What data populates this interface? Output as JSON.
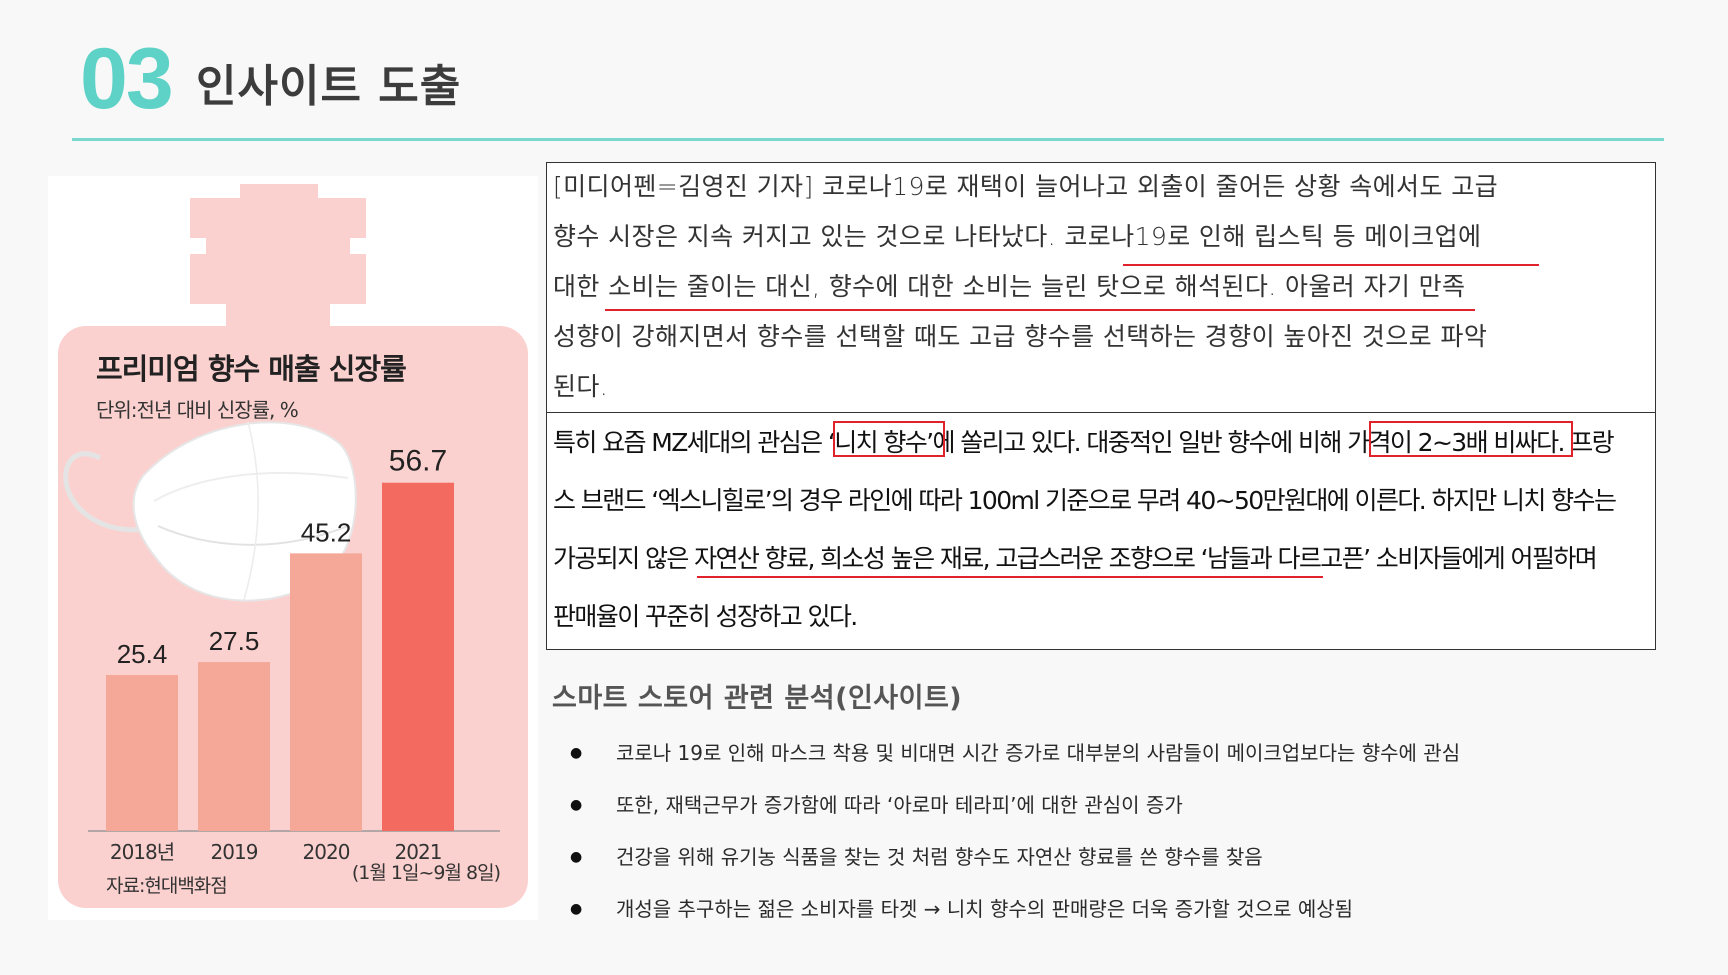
{
  "header": {
    "section_number": "03",
    "section_title": "인사이트 도출"
  },
  "infographic": {
    "title": "프리미엄 향수 매출 신장률",
    "subtitle": "단위:전년 대비 신장률, %",
    "source": "자료:현대백화점",
    "period_note": "(1월 1일~9월 8일)"
  },
  "chart_data": {
    "type": "bar",
    "title": "프리미엄 향수 매출 신장률",
    "ylabel": "단위:전년 대비 신장률, %",
    "categories": [
      "2018년",
      "2019",
      "2020",
      "2021"
    ],
    "values": [
      25.4,
      27.5,
      45.2,
      56.7
    ],
    "value_labels": [
      "25.4",
      "27.5",
      "45.2",
      "56.7"
    ],
    "ylim": [
      0,
      60
    ],
    "colors": [
      "#f5a798",
      "#f5a798",
      "#f5a798",
      "#f26a60"
    ],
    "grid": false,
    "legend": "none"
  },
  "article1": {
    "lines": [
      "[미디어펜=김영진 기자] 코로나19로 재택이 늘어나고 외출이 줄어든 상황 속에서도 고급",
      "향수 시장은 지속 커지고 있는 것으로 나타났다.   코로나19로 인해 립스틱 등 메이크업에",
      "대한 소비는 줄이는 대신, 향수에 대한 소비는 늘린 탓으로 해석된다. 아울러 자기 만족",
      "성향이 강해지면서 향수를 선택할 때도 고급 향수를 선택하는 경향이 높아진 것으로 파악",
      "된다."
    ]
  },
  "article2": {
    "lines": [
      "특히 요즘 MZ세대의 관심은 ‘니치 향수’에 쏠리고 있다. 대중적인 일반 향수에 비해 가격이 2~3배 비싸다. 프랑",
      "스 브랜드 ‘엑스니힐로’의 경우 라인에 따라 100ml 기준으로 무려 40~50만원대에 이른다. 하지만 니치 향수는",
      "가공되지 않은 자연산 향료, 희소성 높은 재료, 고급스러운 조향으로 ‘남들과 다르고픈’ 소비자들에게 어필하며",
      "판매율이 꾸준히 성장하고 있다."
    ]
  },
  "insight": {
    "heading": "스마트 스토어 관련 분석(인사이트)",
    "bullets": [
      "코로나 19로 인해 마스크 착용 및 비대면 시간 증가로 대부분의 사람들이 메이크업보다는 향수에 관심",
      "또한, 재택근무가 증가함에 따라 ‘아로마 테라피’에 대한 관심이 증가",
      "건강을 위해 유기농 식품을 찾는 것 처럼 향수도 자연산 향료를 쓴 향수를 찾음",
      "개성을 추구하는 젊은 소비자를 타겟  →  니치 향수의 판매량은 더욱 증가할 것으로 예상됨"
    ]
  }
}
